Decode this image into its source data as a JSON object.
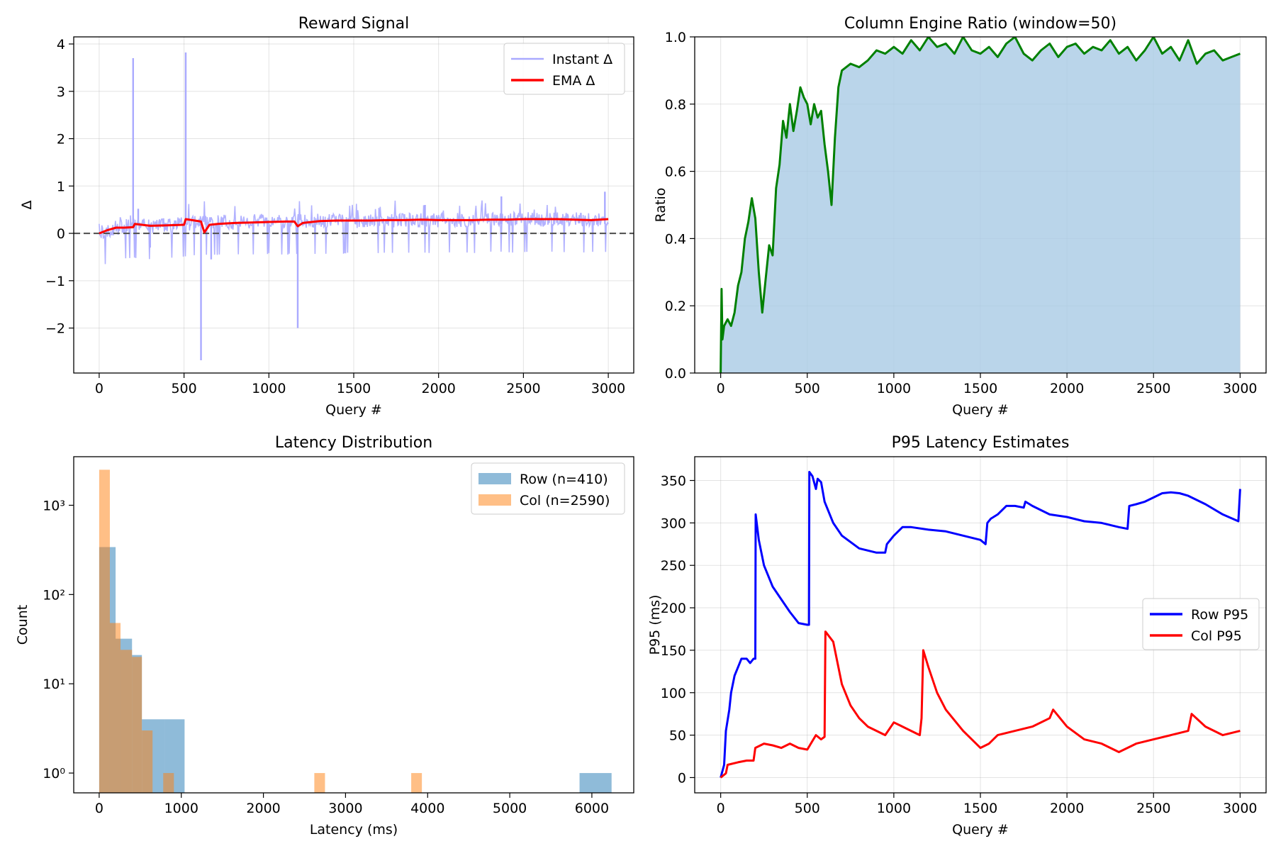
{
  "chart_data": [
    {
      "type": "line",
      "title": "Reward Signal",
      "xlabel": "Query #",
      "ylabel": "Δ",
      "xlim": [
        -150,
        3150
      ],
      "ylim": [
        -2.95,
        4.15
      ],
      "xticks": [
        0,
        500,
        1000,
        1500,
        2000,
        2500,
        3000
      ],
      "yticks": [
        -2,
        -1,
        0,
        1,
        2,
        3,
        4
      ],
      "ytick_labels": [
        "−2",
        "−1",
        "0",
        "1",
        "2",
        "3",
        "4"
      ],
      "grid": true,
      "legend": "top-right",
      "reference_line": {
        "y": 0,
        "style": "dashed",
        "color": "#555555"
      },
      "spikes": [
        [
          200,
          3.7
        ],
        [
          510,
          3.82
        ],
        [
          600,
          -2.68
        ],
        [
          1170,
          -2.0
        ],
        [
          230,
          0.52
        ],
        [
          300,
          -0.3
        ],
        [
          660,
          -0.55
        ],
        [
          1920,
          0.6
        ],
        [
          2370,
          0.78
        ],
        [
          2980,
          0.88
        ]
      ],
      "series": [
        {
          "name": "Instant Δ",
          "color": "#aaaaff",
          "x": [
            0,
            100,
            200,
            300,
            400,
            500,
            600,
            700,
            800,
            900,
            1000,
            1100,
            1200,
            1300,
            1400,
            1500,
            1600,
            1700,
            1800,
            1900,
            2000,
            2100,
            2200,
            2300,
            2400,
            2500,
            2600,
            2700,
            2800,
            2900,
            3000
          ],
          "values": [
            0.0,
            0.12,
            0.18,
            0.15,
            0.17,
            0.2,
            0.25,
            0.24,
            0.24,
            0.25,
            0.26,
            0.25,
            0.26,
            0.26,
            0.27,
            0.27,
            0.27,
            0.28,
            0.28,
            0.29,
            0.28,
            0.28,
            0.28,
            0.29,
            0.29,
            0.3,
            0.3,
            0.3,
            0.3,
            0.29,
            0.3
          ]
        },
        {
          "name": "EMA Δ",
          "color": "#ff0000",
          "x": [
            0,
            50,
            100,
            150,
            200,
            210,
            300,
            400,
            500,
            510,
            600,
            620,
            650,
            700,
            800,
            900,
            1000,
            1100,
            1150,
            1170,
            1200,
            1300,
            1400,
            1500,
            1600,
            1700,
            1800,
            1900,
            2000,
            2100,
            2200,
            2300,
            2400,
            2500,
            2600,
            2700,
            2800,
            2900,
            3000
          ],
          "values": [
            0.0,
            0.07,
            0.12,
            0.12,
            0.13,
            0.2,
            0.16,
            0.17,
            0.18,
            0.3,
            0.25,
            0.02,
            0.18,
            0.2,
            0.22,
            0.23,
            0.24,
            0.25,
            0.25,
            0.15,
            0.22,
            0.26,
            0.27,
            0.27,
            0.27,
            0.28,
            0.28,
            0.29,
            0.28,
            0.28,
            0.28,
            0.29,
            0.29,
            0.3,
            0.3,
            0.3,
            0.29,
            0.28,
            0.3
          ]
        }
      ]
    },
    {
      "type": "area",
      "title": "Column Engine Ratio (window=50)",
      "xlabel": "Query #",
      "ylabel": "Ratio",
      "xlim": [
        -150,
        3150
      ],
      "ylim": [
        0.0,
        1.0
      ],
      "xticks": [
        0,
        500,
        1000,
        1500,
        2000,
        2500,
        3000
      ],
      "yticks": [
        0.0,
        0.2,
        0.4,
        0.6,
        0.8,
        1.0
      ],
      "ytick_labels": [
        "0.0",
        "0.2",
        "0.4",
        "0.6",
        "0.8",
        "1.0"
      ],
      "grid": true,
      "fill_color": "#a9cbe5",
      "series": [
        {
          "name": "",
          "color": "#008000",
          "x": [
            0,
            5,
            10,
            20,
            40,
            60,
            80,
            100,
            120,
            140,
            160,
            180,
            200,
            220,
            240,
            260,
            280,
            300,
            320,
            340,
            360,
            380,
            400,
            420,
            440,
            460,
            480,
            500,
            520,
            540,
            560,
            580,
            600,
            620,
            640,
            660,
            680,
            700,
            750,
            800,
            850,
            900,
            950,
            1000,
            1050,
            1100,
            1150,
            1200,
            1250,
            1300,
            1350,
            1400,
            1450,
            1500,
            1550,
            1600,
            1650,
            1700,
            1750,
            1800,
            1850,
            1900,
            1950,
            2000,
            2050,
            2100,
            2150,
            2200,
            2250,
            2300,
            2350,
            2400,
            2450,
            2500,
            2550,
            2600,
            2650,
            2700,
            2750,
            2800,
            2850,
            2900,
            2950,
            3000
          ],
          "values": [
            0.0,
            0.25,
            0.1,
            0.14,
            0.16,
            0.14,
            0.18,
            0.26,
            0.3,
            0.4,
            0.45,
            0.52,
            0.46,
            0.3,
            0.18,
            0.28,
            0.38,
            0.35,
            0.55,
            0.62,
            0.75,
            0.7,
            0.8,
            0.72,
            0.78,
            0.85,
            0.82,
            0.8,
            0.74,
            0.8,
            0.76,
            0.78,
            0.68,
            0.6,
            0.5,
            0.7,
            0.85,
            0.9,
            0.92,
            0.91,
            0.93,
            0.96,
            0.95,
            0.97,
            0.95,
            0.99,
            0.96,
            1.0,
            0.97,
            0.98,
            0.95,
            1.0,
            0.96,
            0.95,
            0.97,
            0.94,
            0.98,
            1.0,
            0.95,
            0.93,
            0.96,
            0.98,
            0.94,
            0.97,
            0.98,
            0.95,
            0.97,
            0.96,
            0.99,
            0.95,
            0.97,
            0.93,
            0.96,
            1.0,
            0.95,
            0.97,
            0.93,
            0.99,
            0.92,
            0.95,
            0.96,
            0.93,
            0.94,
            0.95
          ]
        }
      ]
    },
    {
      "type": "bar",
      "title": "Latency Distribution",
      "xlabel": "Latency (ms)",
      "ylabel": "Count",
      "yscale": "log",
      "xlim": [
        -310,
        6510
      ],
      "ylim": [
        0.6,
        3500
      ],
      "xticks": [
        0,
        1000,
        2000,
        3000,
        4000,
        5000,
        6000
      ],
      "yticks": [
        1,
        10,
        100,
        1000
      ],
      "ytick_labels": [
        "10⁰",
        "10¹",
        "10²",
        "10³"
      ],
      "grid": false,
      "legend": "top-right",
      "series": [
        {
          "name": "Row (n=410)",
          "color": "#1f77b4",
          "opacity": 0.5,
          "bins": [
            [
              0,
              200,
              340
            ],
            [
              200,
              400,
              32
            ],
            [
              400,
              520,
              21
            ],
            [
              520,
              800,
              4
            ],
            [
              800,
              1040,
              4
            ],
            [
              5850,
              6240,
              1
            ]
          ]
        },
        {
          "name": "Col (n=2590)",
          "color": "#ff7f0e",
          "opacity": 0.5,
          "bins": [
            [
              0,
              130,
              2500
            ],
            [
              130,
              260,
              48
            ],
            [
              260,
              400,
              24
            ],
            [
              400,
              520,
              20
            ],
            [
              520,
              650,
              3
            ],
            [
              780,
              910,
              1
            ],
            [
              2620,
              2750,
              1
            ],
            [
              3800,
              3930,
              1
            ]
          ]
        }
      ]
    },
    {
      "type": "line",
      "title": "P95 Latency Estimates",
      "xlabel": "Query #",
      "ylabel": "P95 (ms)",
      "xlim": [
        -150,
        3150
      ],
      "ylim": [
        -18,
        378
      ],
      "xticks": [
        0,
        500,
        1000,
        1500,
        2000,
        2500,
        3000
      ],
      "yticks": [
        0,
        50,
        100,
        150,
        200,
        250,
        300,
        350
      ],
      "ytick_labels": [
        "0",
        "50",
        "100",
        "150",
        "200",
        "250",
        "300",
        "350"
      ],
      "grid": true,
      "legend": "center-right",
      "series": [
        {
          "name": "Row P95",
          "color": "#0000ff",
          "x": [
            0,
            20,
            30,
            50,
            60,
            80,
            100,
            120,
            150,
            170,
            190,
            200,
            202,
            220,
            250,
            300,
            350,
            400,
            450,
            500,
            510,
            512,
            530,
            550,
            560,
            580,
            600,
            650,
            700,
            800,
            900,
            950,
            960,
            1000,
            1050,
            1100,
            1200,
            1300,
            1400,
            1500,
            1530,
            1540,
            1560,
            1600,
            1650,
            1700,
            1750,
            1760,
            1800,
            1850,
            1900,
            2000,
            2100,
            2200,
            2300,
            2350,
            2360,
            2400,
            2450,
            2500,
            2550,
            2600,
            2650,
            2700,
            2800,
            2900,
            2990,
            3000
          ],
          "values": [
            0,
            15,
            55,
            80,
            100,
            120,
            130,
            140,
            140,
            135,
            140,
            140,
            310,
            280,
            250,
            225,
            210,
            195,
            182,
            180,
            180,
            360,
            355,
            340,
            352,
            348,
            325,
            300,
            285,
            270,
            265,
            265,
            275,
            285,
            295,
            295,
            292,
            290,
            285,
            280,
            275,
            300,
            305,
            310,
            320,
            320,
            318,
            325,
            320,
            315,
            310,
            307,
            302,
            300,
            295,
            293,
            320,
            322,
            325,
            330,
            335,
            336,
            335,
            332,
            322,
            310,
            302,
            340
          ]
        },
        {
          "name": "Col P95",
          "color": "#ff0000",
          "x": [
            0,
            30,
            40,
            100,
            150,
            190,
            200,
            250,
            300,
            350,
            400,
            450,
            500,
            550,
            580,
            600,
            605,
            650,
            700,
            750,
            800,
            850,
            900,
            950,
            1000,
            1050,
            1100,
            1150,
            1160,
            1170,
            1200,
            1250,
            1300,
            1400,
            1500,
            1550,
            1600,
            1700,
            1800,
            1900,
            1920,
            2000,
            2100,
            2200,
            2300,
            2400,
            2500,
            2600,
            2700,
            2720,
            2800,
            2900,
            3000
          ],
          "values": [
            0,
            5,
            15,
            18,
            20,
            20,
            35,
            40,
            38,
            35,
            40,
            35,
            33,
            50,
            45,
            48,
            172,
            160,
            110,
            85,
            70,
            60,
            55,
            50,
            65,
            60,
            55,
            50,
            70,
            150,
            130,
            100,
            80,
            55,
            35,
            40,
            50,
            55,
            60,
            70,
            80,
            60,
            45,
            40,
            30,
            40,
            45,
            50,
            55,
            75,
            60,
            50,
            55
          ]
        }
      ]
    }
  ]
}
